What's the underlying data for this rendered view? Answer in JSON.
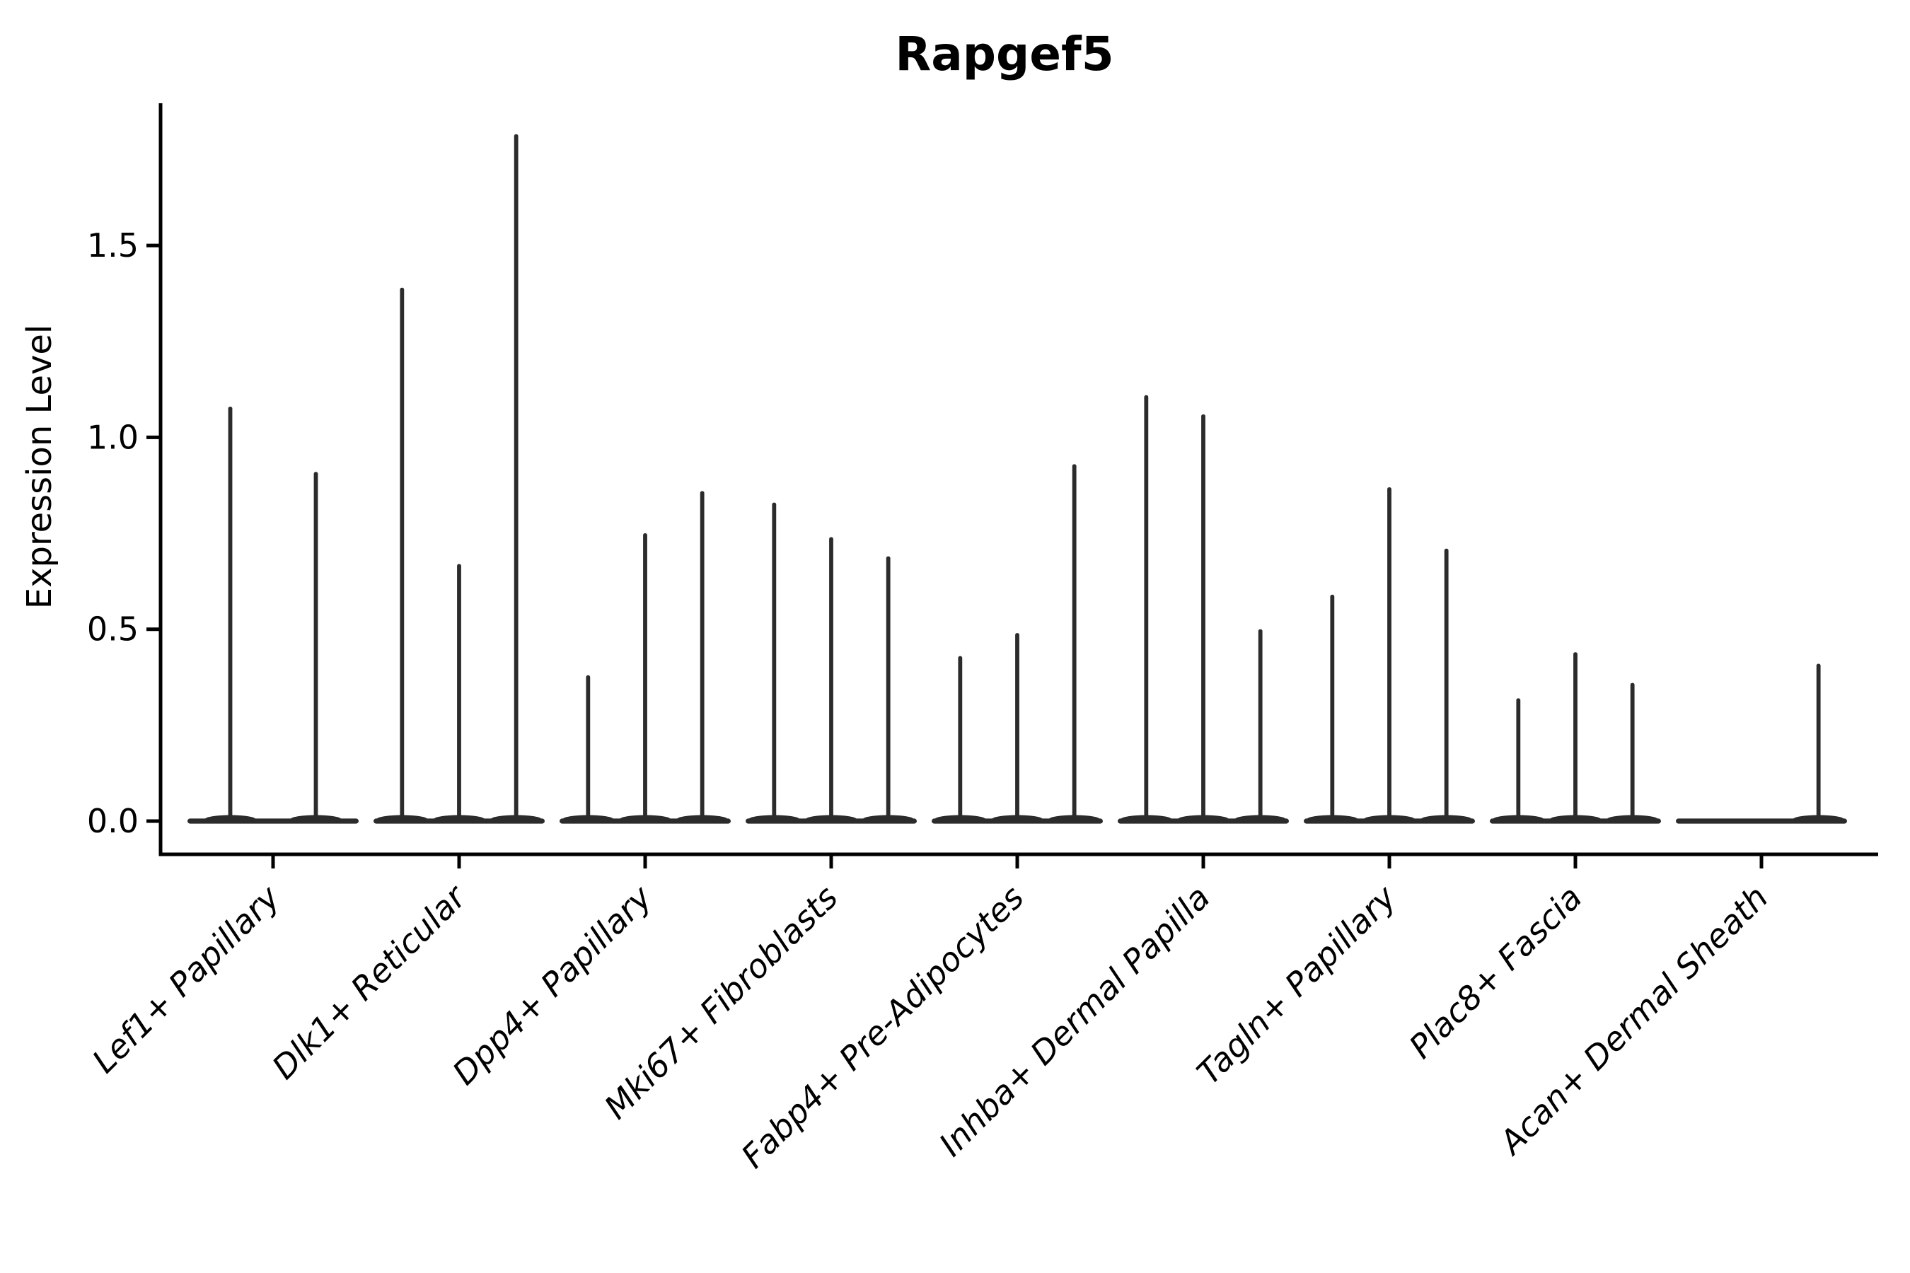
{
  "title": "Rapgef5",
  "axes": {
    "ylabel": "Expression Level",
    "ytick_labels": [
      "0.0",
      "0.5",
      "1.0",
      "1.5"
    ]
  },
  "colors": {
    "violin": "#2b2b2b",
    "axis": "#000000",
    "background": "#ffffff"
  },
  "chart_data": {
    "type": "violin",
    "title": "Rapgef5",
    "xlabel": "",
    "ylabel": "Expression Level",
    "ylim": [
      -0.09,
      1.87
    ],
    "yticks": [
      0.0,
      0.5,
      1.0,
      1.5
    ],
    "grid": false,
    "legend": null,
    "categories": [
      "Lef1+ Papillary",
      "Dlk1+ Reticular",
      "Dpp4+ Papillary",
      "Mki67+ Fibroblasts",
      "Fabp4+ Pre-Adipocytes",
      "Inhba+ Dermal Papilla",
      "Tagln+ Papillary",
      "Plac8+ Fascia",
      "Acan+ Dermal Sheath"
    ],
    "groups": [
      {
        "category": "Lef1+ Papillary",
        "violin_max_values": [
          1.08,
          0.91
        ]
      },
      {
        "category": "Dlk1+ Reticular",
        "violin_max_values": [
          1.39,
          0.67,
          1.79
        ]
      },
      {
        "category": "Dpp4+ Papillary",
        "violin_max_values": [
          0.38,
          0.75,
          0.86
        ]
      },
      {
        "category": "Mki67+ Fibroblasts",
        "violin_max_values": [
          0.83,
          0.74,
          0.69
        ]
      },
      {
        "category": "Fabp4+ Pre-Adipocytes",
        "violin_max_values": [
          0.43,
          0.49,
          0.93
        ]
      },
      {
        "category": "Inhba+ Dermal Papilla",
        "violin_max_values": [
          1.11,
          1.06,
          0.5
        ]
      },
      {
        "category": "Tagln+ Papillary",
        "violin_max_values": [
          0.59,
          0.87,
          0.71
        ]
      },
      {
        "category": "Plac8+ Fascia",
        "violin_max_values": [
          0.32,
          0.44,
          0.36
        ]
      },
      {
        "category": "Acan+ Dermal Sheath",
        "violin_max_values": [
          0.0,
          0.0,
          0.41
        ]
      }
    ]
  }
}
